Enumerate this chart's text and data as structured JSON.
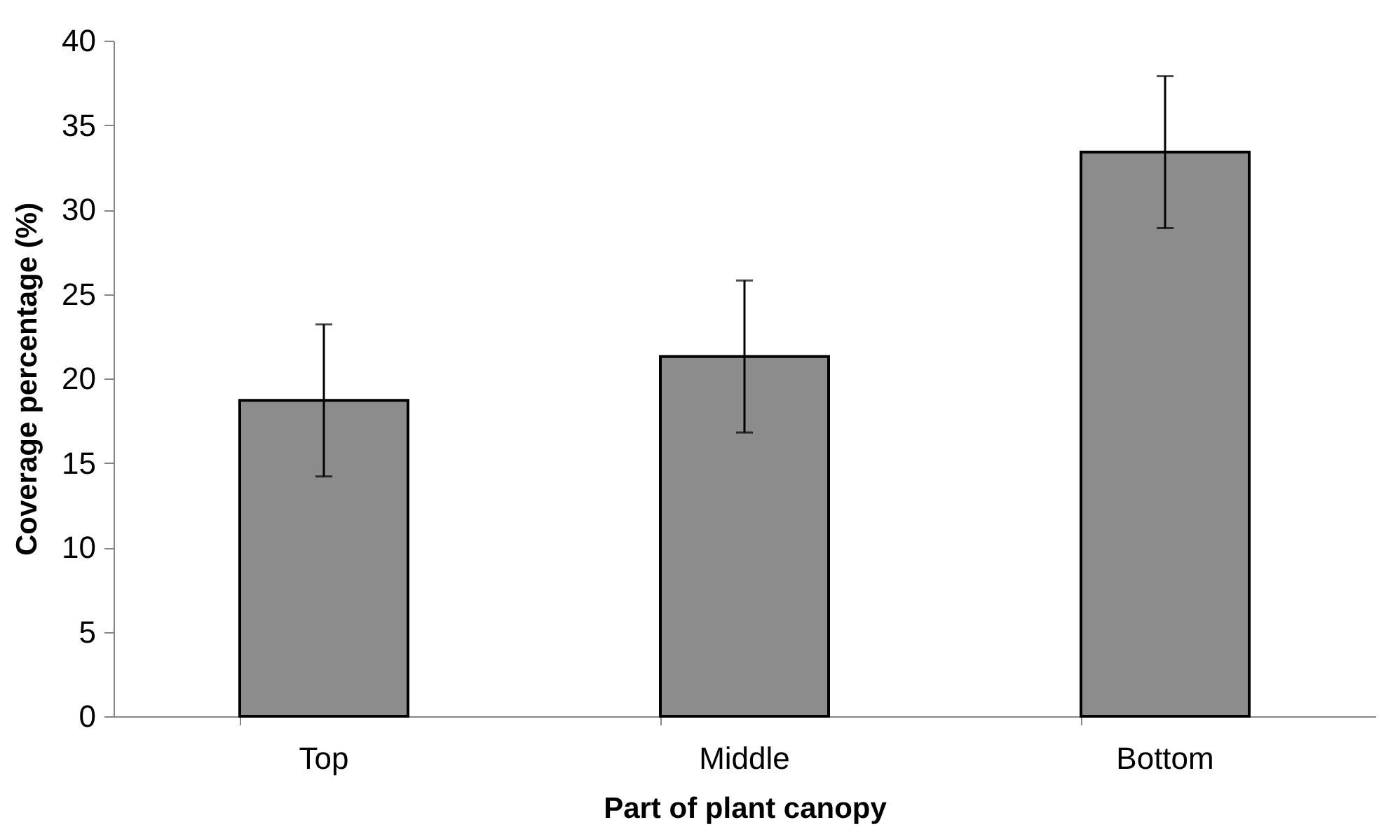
{
  "chart_data": {
    "type": "bar",
    "xlabel": "Part of plant canopy",
    "ylabel": "Coverage percentage (%)",
    "categories": [
      "Top",
      "Middle",
      "Bottom"
    ],
    "values": [
      18.7,
      21.3,
      33.4
    ],
    "errors": [
      4.5,
      4.5,
      4.5
    ],
    "color": "#8c8c8c",
    "ylim": [
      0,
      40
    ],
    "yticks": [
      0,
      5,
      10,
      15,
      20,
      25,
      30,
      35,
      40
    ],
    "grid": false
  }
}
